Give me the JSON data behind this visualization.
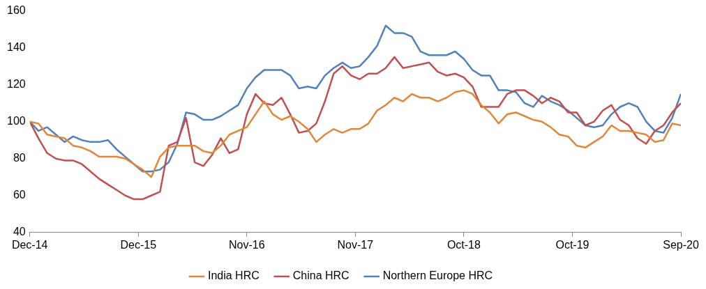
{
  "chart_data": {
    "type": "line",
    "x": [
      "2014-12-26",
      "2015-01-23",
      "2015-02-20",
      "2015-03-20",
      "2015-04-17",
      "2015-05-15",
      "2015-06-12",
      "2015-07-10",
      "2015-08-07",
      "2015-09-04",
      "2015-10-02",
      "2015-10-30",
      "2015-11-27",
      "2015-12-25",
      "2016-01-22",
      "2016-02-19",
      "2016-03-18",
      "2016-04-15",
      "2016-05-13",
      "2016-06-10",
      "2016-07-08",
      "2016-08-05",
      "2016-09-02",
      "2016-09-30",
      "2016-10-28",
      "2016-11-25",
      "2016-12-23",
      "2017-01-20",
      "2017-02-17",
      "2017-03-17",
      "2017-04-14",
      "2017-05-12",
      "2017-06-09",
      "2017-07-07",
      "2017-08-04",
      "2017-09-01",
      "2017-09-29",
      "2017-10-27",
      "2017-11-24",
      "2017-12-22",
      "2018-01-19",
      "2018-02-16",
      "2018-03-16",
      "2018-04-13",
      "2018-05-11",
      "2018-06-08",
      "2018-07-06",
      "2018-08-03",
      "2018-08-31",
      "2018-09-28",
      "2018-10-26",
      "2018-11-23",
      "2018-12-21",
      "2019-01-18",
      "2019-02-15",
      "2019-03-15",
      "2019-04-12",
      "2019-05-10",
      "2019-06-07",
      "2019-07-05",
      "2019-08-02",
      "2019-08-30",
      "2019-09-27",
      "2019-10-25",
      "2019-11-22",
      "2019-12-20",
      "2020-01-17",
      "2020-02-14",
      "2020-03-13",
      "2020-04-10",
      "2020-05-08",
      "2020-06-05",
      "2020-07-03",
      "2020-07-31",
      "2020-08-28",
      "2020-09-25"
    ],
    "series": [
      {
        "name": "India HRC",
        "color": "#e0873a",
        "values": [
          100,
          99,
          93,
          92,
          91,
          87,
          86,
          84,
          81,
          81,
          81,
          80,
          77,
          74,
          70,
          81,
          86,
          87,
          87,
          87,
          84,
          83,
          87,
          93,
          95,
          97,
          104,
          111,
          104,
          101,
          103,
          100,
          96,
          89,
          93,
          96,
          94,
          96,
          96,
          99,
          106,
          109,
          113,
          111,
          115,
          113,
          113,
          111,
          113,
          116,
          117,
          115,
          109,
          105,
          99,
          104,
          105,
          103,
          101,
          100,
          97,
          93,
          92,
          87,
          86,
          89,
          92,
          98,
          95,
          95,
          94,
          93,
          89,
          90,
          99,
          98
        ]
      },
      {
        "name": "China HRC",
        "color": "#c0504d",
        "values": [
          100,
          91,
          83,
          80,
          79,
          79,
          77,
          73,
          69,
          66,
          63,
          60,
          58,
          58,
          60,
          62,
          87,
          89,
          102,
          78,
          76,
          82,
          91,
          83,
          85,
          104,
          115,
          110,
          109,
          113,
          104,
          94,
          95,
          99,
          111,
          126,
          130,
          125,
          123,
          126,
          126,
          129,
          135,
          129,
          130,
          131,
          132,
          127,
          125,
          126,
          124,
          119,
          108,
          108,
          108,
          115,
          117,
          117,
          114,
          110,
          113,
          111,
          105,
          105,
          98,
          100,
          106,
          109,
          101,
          98,
          91,
          88,
          95,
          98,
          105,
          110
        ]
      },
      {
        "name": "Northern Europe HRC",
        "color": "#4f81bd",
        "values": [
          100,
          95,
          97,
          93,
          89,
          92,
          90,
          89,
          89,
          90,
          85,
          81,
          77,
          73,
          73,
          74,
          78,
          88,
          105,
          104,
          101,
          101,
          103,
          106,
          109,
          118,
          124,
          128,
          128,
          128,
          125,
          118,
          119,
          118,
          125,
          129,
          132,
          129,
          130,
          135,
          141,
          152,
          148,
          148,
          146,
          138,
          136,
          136,
          136,
          138,
          134,
          128,
          125,
          125,
          117,
          117,
          116,
          110,
          108,
          114,
          111,
          109,
          106,
          102,
          98,
          97,
          98,
          104,
          108,
          110,
          108,
          100,
          95,
          94,
          102,
          115
        ]
      }
    ],
    "xlim": [
      "2014-12-26",
      "2020-09-25"
    ],
    "xticks": [
      {
        "value": "2014-12-26",
        "label": "Dec-14"
      },
      {
        "value": "2015-12-11",
        "label": "Dec-15"
      },
      {
        "value": "2016-11-25",
        "label": "Nov-16"
      },
      {
        "value": "2017-11-10",
        "label": "Nov-17"
      },
      {
        "value": "2018-10-26",
        "label": "Oct-18"
      },
      {
        "value": "2019-10-11",
        "label": "Oct-19"
      },
      {
        "value": "2020-09-25",
        "label": "Sep-20"
      }
    ],
    "ylim": [
      40,
      160
    ],
    "yticks": [
      40,
      60,
      80,
      100,
      120,
      140,
      160
    ],
    "legend": "bottom"
  }
}
